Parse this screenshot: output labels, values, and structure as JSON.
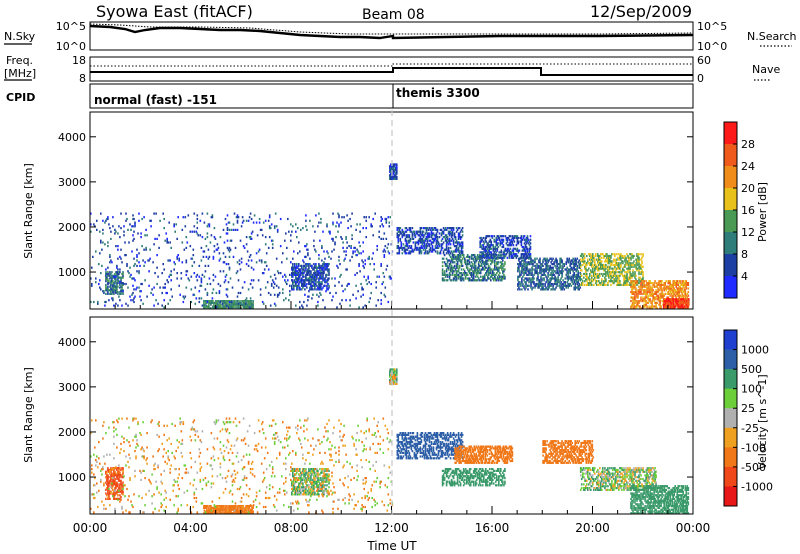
{
  "header": {
    "station": "Syowa East (fitACF)",
    "beam": "Beam 08",
    "date": "12/Sep/2009"
  },
  "strip_labels": {
    "nsky": "N.Sky",
    "nsearch": "N.Search",
    "freq_line1": "Freq.",
    "freq_line2": "[MHz]",
    "nave": "Nave",
    "cpid": "CPID",
    "exp_tick_hi": "10^5",
    "exp_tick_lo": "10^0",
    "freq_tick_hi": "18",
    "freq_tick_lo": "8",
    "nave_tick_hi": "60",
    "nave_tick_lo": "0"
  },
  "cpid_segments": [
    {
      "label": "normal (fast) -151",
      "start_hour": 0
    },
    {
      "label": "themis 3300",
      "start_hour": 12
    }
  ],
  "colors": {
    "power_scale": [
      "#1f2bff",
      "#1d3ea3",
      "#2f7d7a",
      "#4a9a55",
      "#e8c21a",
      "#f08c1a",
      "#f05a1a",
      "#ff1a1a"
    ],
    "velocity_scale": [
      "#1e3fcf",
      "#2d5fa8",
      "#3a9a6a",
      "#6ccf3a",
      "#b0b0b0",
      "#f0a020",
      "#f07818",
      "#f04818",
      "#e81818"
    ],
    "dashed_line": "#c8c8c8"
  },
  "chart_data": [
    {
      "type": "heatmap",
      "name_panel": "power",
      "xlabel": "",
      "ylabel": "Slant Range [km]",
      "xlim": [
        0,
        24
      ],
      "ylim": [
        180,
        4550
      ],
      "yticks": [
        1000,
        2000,
        3000,
        4000
      ],
      "xticks": [
        0,
        4,
        8,
        12,
        16,
        20,
        24
      ],
      "colorbar": {
        "label": "Power [dB]",
        "boundaries": [
          0,
          4,
          8,
          12,
          16,
          20,
          24,
          28,
          32
        ],
        "tick_labels": [
          "4",
          "8",
          "12",
          "16",
          "20",
          "24",
          "28"
        ]
      },
      "regions": [
        {
          "t": [
            0.6,
            1.3
          ],
          "r": [
            500,
            1000
          ],
          "value": 10,
          "density": 0.6
        },
        {
          "t": [
            4.5,
            6.5
          ],
          "r": [
            180,
            380
          ],
          "value": 12,
          "density": 0.8
        },
        {
          "t": [
            8.0,
            9.5
          ],
          "r": [
            600,
            1200
          ],
          "value": 6,
          "density": 0.6
        },
        {
          "t": [
            11.9,
            12.2
          ],
          "r": [
            3050,
            3400
          ],
          "value": 6,
          "density": 0.9
        },
        {
          "t": [
            12.2,
            14.8
          ],
          "r": [
            1400,
            2000
          ],
          "value": 6,
          "density": 0.45
        },
        {
          "t": [
            14.0,
            16.5
          ],
          "r": [
            800,
            1400
          ],
          "value": 10,
          "density": 0.5
        },
        {
          "t": [
            15.5,
            17.5
          ],
          "r": [
            1300,
            1800
          ],
          "value": 6,
          "density": 0.5
        },
        {
          "t": [
            17.0,
            19.5
          ],
          "r": [
            600,
            1300
          ],
          "value": 8,
          "density": 0.5
        },
        {
          "t": [
            19.5,
            22.0
          ],
          "r": [
            700,
            1400
          ],
          "value": 16,
          "density": 0.5
        },
        {
          "t": [
            21.5,
            23.8
          ],
          "r": [
            180,
            800
          ],
          "value": 22,
          "density": 0.6
        },
        {
          "t": [
            22.8,
            23.8
          ],
          "r": [
            180,
            400
          ],
          "value": 28,
          "density": 0.8
        },
        {
          "t": [
            0.0,
            12.0
          ],
          "r": [
            200,
            2300
          ],
          "value": 6,
          "density": 0.06
        }
      ]
    },
    {
      "type": "heatmap",
      "name_panel": "velocity",
      "xlabel": "Time UT",
      "ylabel": "Slant Range [km]",
      "xlim": [
        0,
        24
      ],
      "ylim": [
        180,
        4550
      ],
      "yticks": [
        1000,
        2000,
        3000,
        4000
      ],
      "xticks": [
        0,
        4,
        8,
        12,
        16,
        20,
        24
      ],
      "xtick_labels": [
        "00:00",
        "04:00",
        "08:00",
        "12:00",
        "16:00",
        "20:00",
        "00:00"
      ],
      "colorbar": {
        "label": "Velocity [m s^-1]",
        "boundaries": [
          1500,
          1000,
          500,
          100,
          25,
          -25,
          -100,
          -500,
          -1000,
          -1500
        ],
        "tick_labels": [
          "1000",
          "500",
          "100",
          "25",
          "-25",
          "-100",
          "-500",
          "-1000"
        ]
      },
      "regions": [
        {
          "t": [
            0.6,
            1.3
          ],
          "r": [
            500,
            1200
          ],
          "value": -600,
          "density": 0.6
        },
        {
          "t": [
            4.5,
            6.5
          ],
          "r": [
            180,
            380
          ],
          "value": -300,
          "density": 0.8
        },
        {
          "t": [
            8.0,
            9.5
          ],
          "r": [
            600,
            1200
          ],
          "value": 60,
          "density": 0.6
        },
        {
          "t": [
            11.9,
            12.2
          ],
          "r": [
            3050,
            3400
          ],
          "value": 0,
          "density": 0.9
        },
        {
          "t": [
            12.2,
            14.8
          ],
          "r": [
            1400,
            2000
          ],
          "value": 700,
          "density": 0.45
        },
        {
          "t": [
            14.5,
            16.8
          ],
          "r": [
            1300,
            1700
          ],
          "value": -300,
          "density": 0.6
        },
        {
          "t": [
            14.0,
            16.5
          ],
          "r": [
            800,
            1200
          ],
          "value": 300,
          "density": 0.5
        },
        {
          "t": [
            18.0,
            20.0
          ],
          "r": [
            1300,
            1800
          ],
          "value": -250,
          "density": 0.55
        },
        {
          "t": [
            19.5,
            22.5
          ],
          "r": [
            700,
            1200
          ],
          "value": 60,
          "density": 0.5
        },
        {
          "t": [
            21.5,
            23.8
          ],
          "r": [
            180,
            800
          ],
          "value": 300,
          "density": 0.6
        },
        {
          "t": [
            0.0,
            12.0
          ],
          "r": [
            200,
            2300
          ],
          "value": -60,
          "density": 0.06
        }
      ]
    }
  ]
}
